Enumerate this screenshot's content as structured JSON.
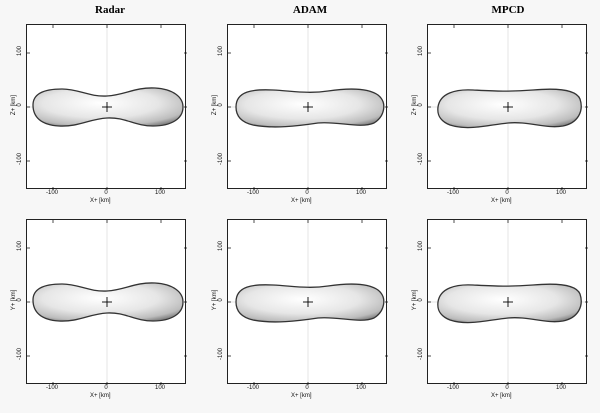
{
  "columns": [
    "Radar",
    "ADAM",
    "MPCD"
  ],
  "rows": [
    {
      "ylabel": "Z+ [km]",
      "xlabel": "X+ [km]"
    },
    {
      "ylabel": "Y+ [km]",
      "xlabel": "X+ [km]"
    }
  ],
  "xticks": [
    "-100",
    "0",
    "100"
  ],
  "yticks": [
    "100",
    "0",
    "-100"
  ],
  "colors": {
    "frame": "#222222",
    "shape_fill": "#dedede",
    "shape_edge": "#333333",
    "grid": "#bbbbbb"
  }
}
